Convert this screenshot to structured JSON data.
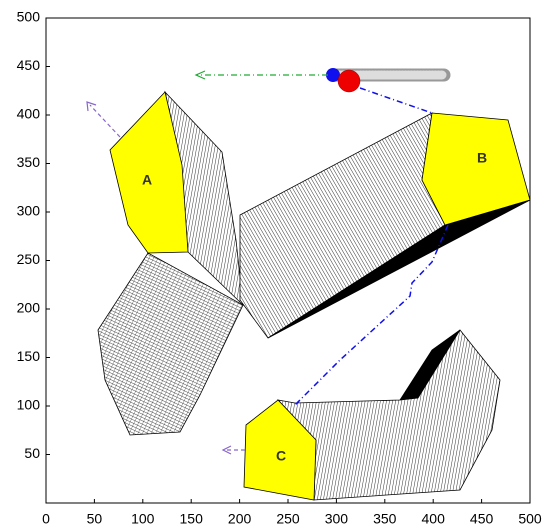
{
  "chart_data": {
    "type": "diagram",
    "xlim": [
      0,
      500
    ],
    "ylim": [
      0,
      500
    ],
    "xticks": [
      0,
      50,
      100,
      150,
      200,
      250,
      300,
      350,
      400,
      450,
      500
    ],
    "yticks": [
      50,
      100,
      150,
      200,
      250,
      300,
      350,
      400,
      450,
      500
    ],
    "labels": [
      "A",
      "B",
      "C"
    ]
  }
}
